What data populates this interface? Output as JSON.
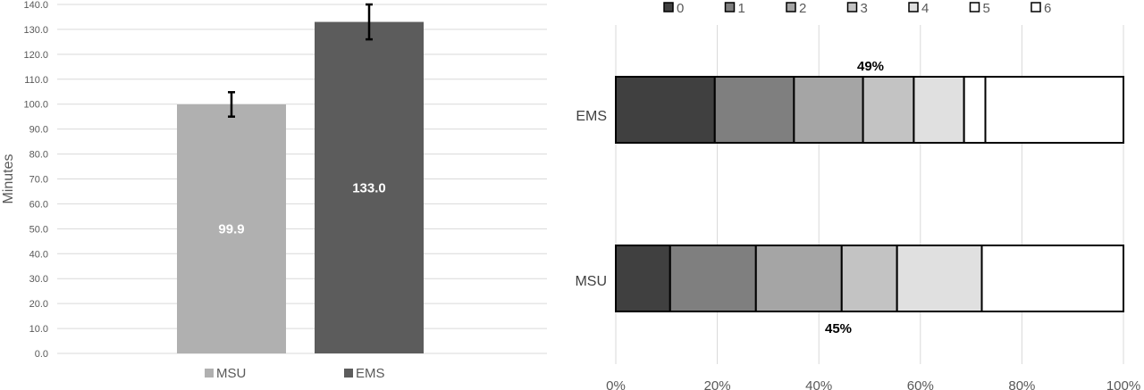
{
  "chart_data": [
    {
      "type": "bar",
      "ylabel": "Minutes",
      "ylim": [
        0,
        140
      ],
      "ytick_step": 10,
      "grid": true,
      "legend_position": "bottom",
      "categories": [
        "MSU",
        "EMS"
      ],
      "values": [
        99.9,
        133.0
      ],
      "value_labels": [
        "99.9",
        "133.0"
      ],
      "error_bars": [
        {
          "low": 95.0,
          "high": 104.8
        },
        {
          "low": 126.0,
          "high": 140.0
        }
      ],
      "colors": [
        "#b0b0b0",
        "#5c5c5c"
      ],
      "legend": [
        "MSU",
        "EMS"
      ]
    },
    {
      "type": "bar",
      "orientation": "horizontal",
      "stacked": true,
      "xlim": [
        0,
        100
      ],
      "xtick_step": 20,
      "x_unit": "%",
      "grid": true,
      "legend_position": "top",
      "categories": [
        "EMS",
        "MSU"
      ],
      "series": [
        {
          "name": "0",
          "color": "#404040",
          "values": [
            19.5,
            10.7
          ]
        },
        {
          "name": "1",
          "color": "#7f7f7f",
          "values": [
            15.6,
            16.9
          ]
        },
        {
          "name": "2",
          "color": "#a5a5a5",
          "values": [
            13.6,
            16.9
          ]
        },
        {
          "name": "3",
          "color": "#c3c3c3",
          "values": [
            10.0,
            10.9
          ]
        },
        {
          "name": "4",
          "color": "#e0e0e0",
          "values": [
            9.9,
            16.7
          ]
        },
        {
          "name": "5",
          "color": "#ffffff",
          "values": [
            4.2,
            0
          ]
        },
        {
          "name": "6",
          "color": "#ffffff",
          "values": [
            27.2,
            27.9
          ]
        }
      ],
      "annotations": [
        {
          "category": "EMS",
          "text": "49%",
          "placement": "above"
        },
        {
          "category": "MSU",
          "text": "45%",
          "placement": "below"
        }
      ]
    }
  ]
}
